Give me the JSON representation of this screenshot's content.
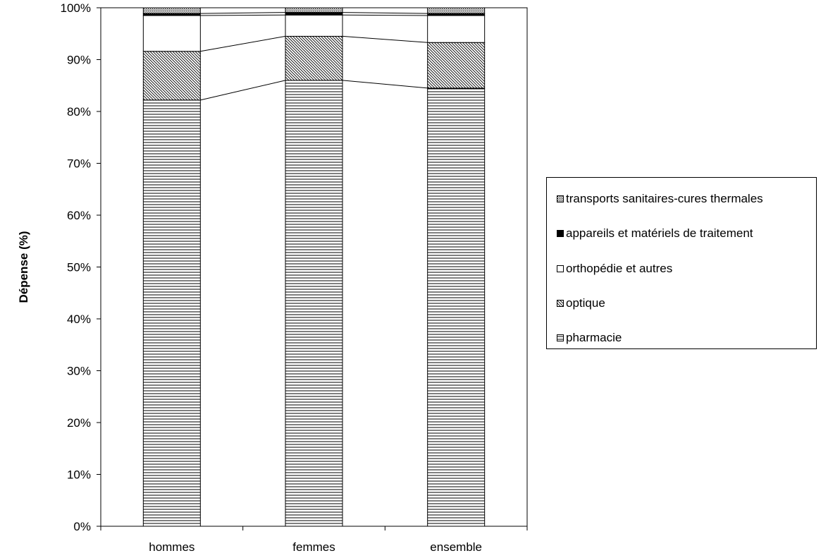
{
  "chart_data": {
    "type": "bar",
    "stacked": true,
    "percent": true,
    "categories": [
      "hommes",
      "femmes",
      "ensemble"
    ],
    "series": [
      {
        "name": "pharmacie",
        "values": [
          82.2,
          86.0,
          84.5
        ],
        "fill": "#ffffff",
        "pattern": "horizontal-lines"
      },
      {
        "name": "optique",
        "values": [
          9.4,
          8.5,
          8.8
        ],
        "fill": "#ffffff",
        "pattern": "diagonal-hatch"
      },
      {
        "name": "orthopédie et autres",
        "values": [
          6.9,
          4.1,
          5.2
        ],
        "fill": "#ffffff",
        "pattern": "none"
      },
      {
        "name": "appareils et matériels de traitement",
        "values": [
          0.4,
          0.5,
          0.4
        ],
        "fill": "#000000",
        "pattern": "solid"
      },
      {
        "name": "transports sanitaires-cures thermales",
        "values": [
          1.1,
          0.9,
          1.1
        ],
        "fill": "#ffffff",
        "pattern": "dots"
      }
    ],
    "ylabel": "Dépense (%)",
    "xlabel": "",
    "ylim": [
      0,
      100
    ],
    "yticks": [
      "0%",
      "10%",
      "20%",
      "30%",
      "40%",
      "50%",
      "60%",
      "70%",
      "80%",
      "90%",
      "100%"
    ],
    "series_lines": true,
    "grid": false,
    "legend_position": "right"
  }
}
